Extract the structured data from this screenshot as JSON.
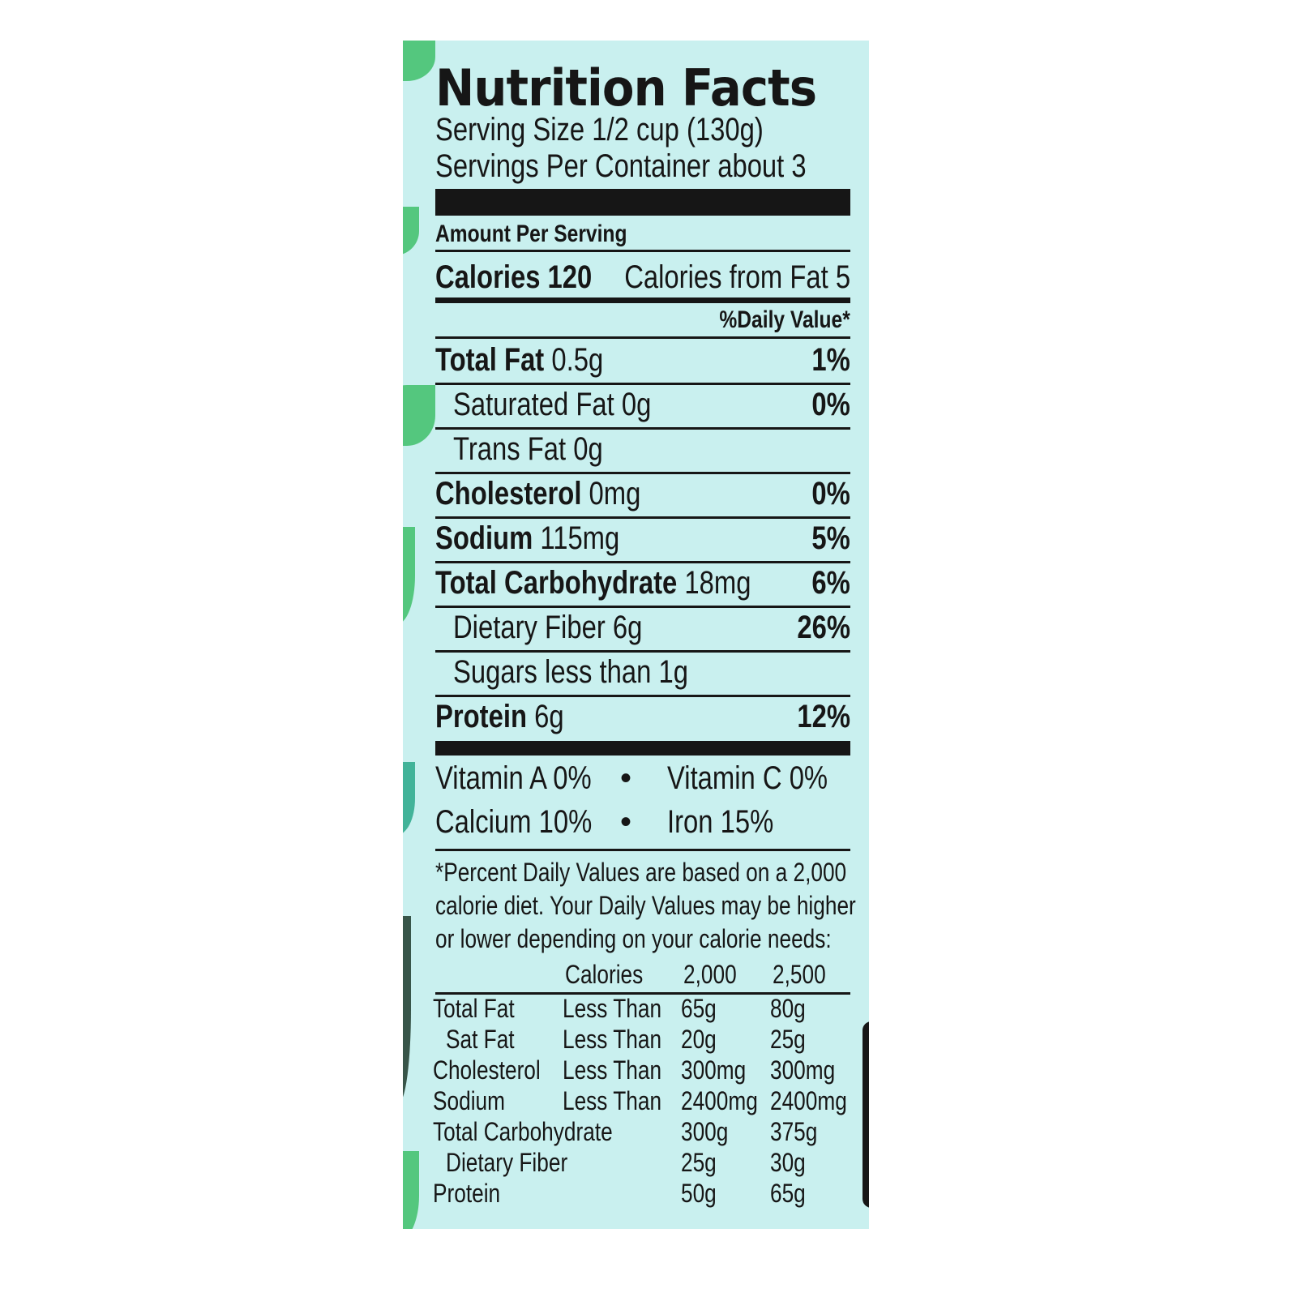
{
  "label": {
    "title": "Nutrition Facts",
    "serving_size": "Serving Size 1/2 cup (130g)",
    "servings_per_container": "Servings Per Container about 3",
    "amount_per_serving": "Amount Per Serving",
    "calories": "Calories 120",
    "calories_from_fat": "Calories from Fat 5",
    "daily_value_header": "%Daily Value*",
    "nutrients": [
      {
        "name": "Total Fat",
        "amount": "0.5g",
        "dv": "1%",
        "bold": true,
        "indent": false
      },
      {
        "name": "Saturated Fat",
        "amount": "0g",
        "dv": "0%",
        "bold": false,
        "indent": true
      },
      {
        "name": "Trans Fat",
        "amount": "0g",
        "dv": "",
        "bold": false,
        "indent": true
      },
      {
        "name": "Cholesterol",
        "amount": "0mg",
        "dv": "0%",
        "bold": true,
        "indent": false
      },
      {
        "name": "Sodium",
        "amount": "115mg",
        "dv": "5%",
        "bold": true,
        "indent": false
      },
      {
        "name": "Total Carbohydrate",
        "amount": "18mg",
        "dv": "6%",
        "bold": true,
        "indent": false
      },
      {
        "name": "Dietary Fiber",
        "amount": "6g",
        "dv": "26%",
        "bold": false,
        "indent": true
      },
      {
        "name": "Sugars",
        "amount": "less than 1g",
        "dv": "",
        "bold": false,
        "indent": true
      },
      {
        "name": "Protein",
        "amount": "6g",
        "dv": "12%",
        "bold": true,
        "indent": false
      }
    ],
    "vitamins": [
      {
        "left": "Vitamin A 0%",
        "bullet": "•",
        "right": "Vitamin C 0%"
      },
      {
        "left": "Calcium 10%",
        "bullet": "•",
        "right": "Iron 15%"
      }
    ],
    "footnote": [
      "*Percent Daily Values are based on a 2,000",
      "calorie diet. Your Daily Values may be higher",
      "or lower depending on your calorie needs:"
    ],
    "reference_table": {
      "header": [
        "",
        "Calories",
        "2,000",
        "2,500"
      ],
      "rows": [
        [
          "Total Fat",
          "Less Than",
          "65g",
          "80g"
        ],
        [
          "  Sat Fat",
          "Less Than",
          "20g",
          "25g"
        ],
        [
          "Cholesterol",
          "Less Than",
          "300mg",
          "300mg"
        ],
        [
          "Sodium",
          "Less Than",
          "2400mg",
          "2400mg"
        ],
        [
          "Total Carbohydrate",
          "",
          "300g",
          "375g"
        ],
        [
          "  Dietary Fiber",
          "",
          "25g",
          "30g"
        ],
        [
          "Protein",
          "",
          "50g",
          "65g"
        ]
      ]
    }
  },
  "colors": {
    "background": "#c9f0ef",
    "leaf": "#3fbf6a",
    "ink": "#161616"
  }
}
